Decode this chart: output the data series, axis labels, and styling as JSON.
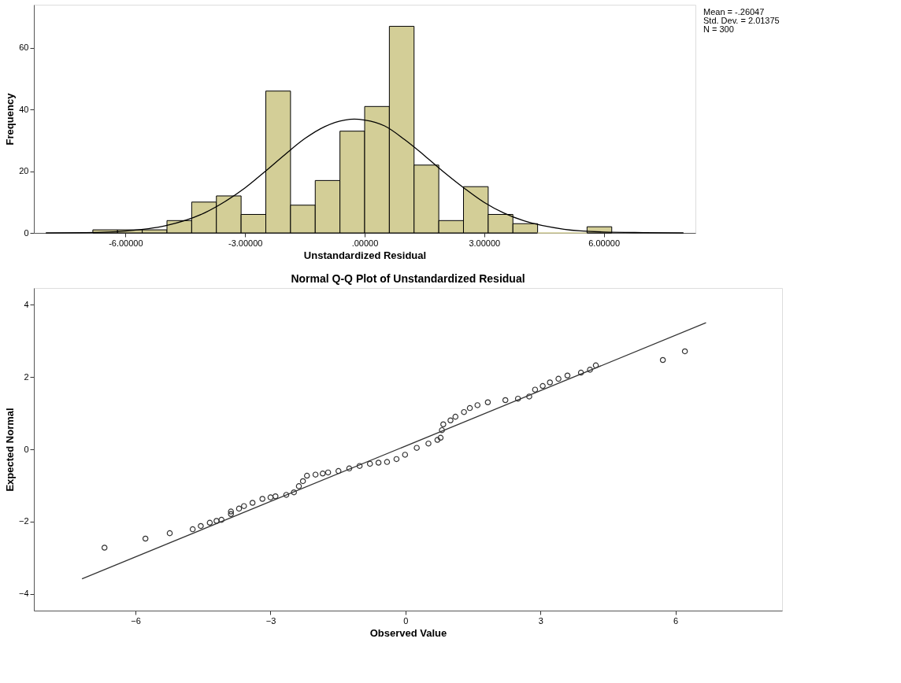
{
  "chart_data": [
    {
      "type": "histogram",
      "xlabel": "Unstandardized Residual",
      "ylabel": "Frequency",
      "color": "#d3ce97",
      "bins": [
        -6.82,
        -6.2,
        -5.58,
        -4.96,
        -4.34,
        -3.72,
        -3.1,
        -2.48,
        -1.86,
        -1.24,
        -0.62,
        0,
        0.62,
        1.24,
        1.86,
        2.48,
        3.1,
        3.72,
        4.34,
        4.96,
        5.58,
        6.2
      ],
      "values": [
        1,
        1,
        1,
        4,
        10,
        12,
        6,
        46,
        9,
        17,
        33,
        41,
        67,
        22,
        4,
        15,
        6,
        3,
        0,
        0,
        2
      ],
      "series": [
        {
          "type": "line",
          "color": "#000000",
          "x": [
            -8,
            -7,
            -6,
            -5,
            -4,
            -3.5,
            -3,
            -2.5,
            -2,
            -1.5,
            -1,
            -0.5,
            -0.26,
            0,
            0.5,
            1,
            1.5,
            2,
            2.5,
            3,
            3.5,
            4,
            5,
            6,
            7,
            8
          ],
          "values": [
            0,
            0.1,
            0.6,
            2.3,
            6.6,
            10.2,
            14.6,
            19.9,
            25.4,
            30.6,
            34.5,
            36.6,
            36.9,
            36.6,
            34.7,
            30.3,
            25.1,
            19.6,
            14.5,
            9.9,
            6.4,
            3.9,
            1.2,
            0.3,
            0.1,
            0
          ]
        }
      ],
      "xlim": [
        -8.3,
        8.3
      ],
      "ylim": [
        0,
        74
      ],
      "xticks": [
        {
          "value": -6,
          "label": "-6.00000"
        },
        {
          "value": -3,
          "label": "-3.00000"
        },
        {
          "value": 0,
          "label": ".00000"
        },
        {
          "value": 3,
          "label": "3.00000"
        },
        {
          "value": 6,
          "label": "6.00000"
        }
      ],
      "yticks": [
        0,
        20,
        40,
        60
      ],
      "grid": false,
      "annotations": [
        "Mean = -.26047",
        "Std. Dev. = 2.01375",
        "N = 300"
      ]
    },
    {
      "type": "scatter",
      "title": "Normal Q-Q Plot of Unstandardized Residual",
      "xlabel": "Observed Value",
      "ylabel": "Expected Normal",
      "series": [
        {
          "type": "scatter",
          "marker": "circle",
          "color": "#333333",
          "x": [
            -6.69,
            -5.78,
            -5.24,
            -4.73,
            -4.55,
            -4.35,
            -4.2,
            -4.09,
            -3.88,
            -3.88,
            -3.7,
            -3.59,
            -3.4,
            -3.18,
            -3.0,
            -2.89,
            -2.65,
            -2.48,
            -2.37,
            -2.28,
            -2.19,
            -2.0,
            -1.84,
            -1.72,
            -1.49,
            -1.25,
            -1.02,
            -0.79,
            -0.6,
            -0.41,
            -0.2,
            -0.01,
            0.25,
            0.51,
            0.71,
            0.78,
            0.81,
            0.84,
            1.0,
            1.11,
            1.3,
            1.43,
            1.6,
            1.83,
            2.22,
            2.5,
            2.75,
            2.88,
            3.05,
            3.21,
            3.4,
            3.6,
            3.9,
            4.1,
            4.23,
            5.72,
            6.21
          ],
          "values": [
            -2.72,
            -2.47,
            -2.32,
            -2.21,
            -2.12,
            -2.03,
            -1.98,
            -1.95,
            -1.79,
            -1.72,
            -1.64,
            -1.57,
            -1.48,
            -1.37,
            -1.33,
            -1.3,
            -1.26,
            -1.19,
            -1.02,
            -0.88,
            -0.73,
            -0.7,
            -0.67,
            -0.64,
            -0.6,
            -0.53,
            -0.46,
            -0.4,
            -0.37,
            -0.35,
            -0.27,
            -0.15,
            0.04,
            0.16,
            0.26,
            0.32,
            0.53,
            0.69,
            0.8,
            0.9,
            1.03,
            1.14,
            1.22,
            1.3,
            1.36,
            1.4,
            1.46,
            1.65,
            1.75,
            1.85,
            1.95,
            2.04,
            2.12,
            2.2,
            2.32,
            2.47,
            2.71
          ]
        },
        {
          "type": "line",
          "color": "#333333",
          "x": [
            -7.19,
            6.68
          ],
          "values": [
            -3.58,
            3.5
          ]
        }
      ],
      "xlim": [
        -8.26,
        8.37
      ],
      "ylim": [
        -4.46,
        4.46
      ],
      "xticks": [
        -6,
        -3,
        0,
        3,
        6
      ],
      "yticks": [
        -4,
        -2,
        0,
        2,
        4
      ],
      "grid": false
    }
  ]
}
